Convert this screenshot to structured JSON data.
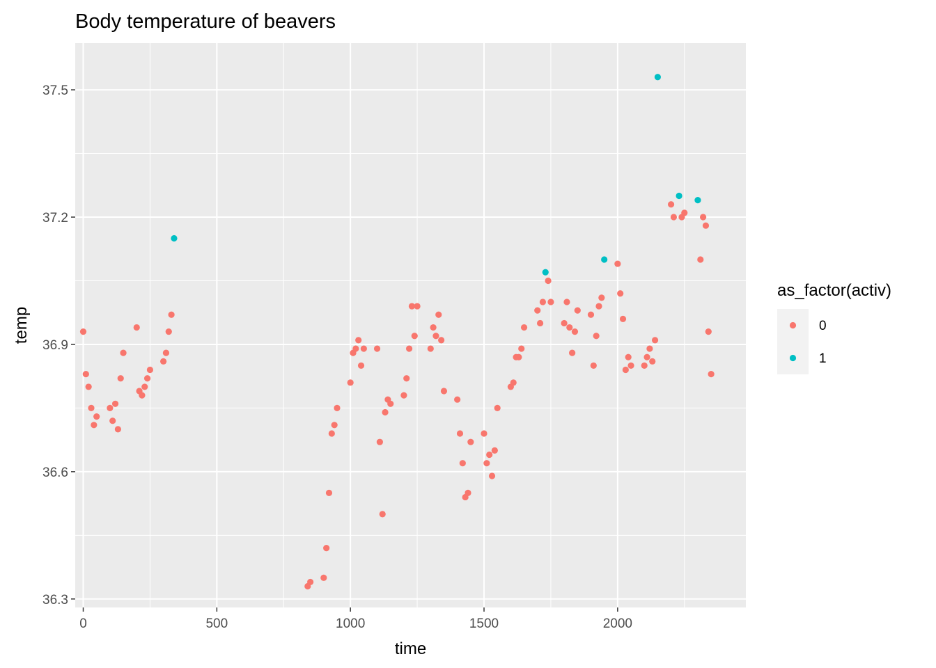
{
  "chart_data": {
    "type": "scatter",
    "title": "Body temperature of beavers",
    "xlabel": "time",
    "ylabel": "temp",
    "xlim": [
      -30,
      2480
    ],
    "ylim": [
      36.28,
      37.61
    ],
    "x_ticks": [
      0,
      500,
      1000,
      1500,
      2000
    ],
    "x_tick_labels": [
      "0",
      "500",
      "1000",
      "1500",
      "2000"
    ],
    "y_ticks": [
      36.3,
      36.6,
      36.9,
      37.2,
      37.5
    ],
    "y_tick_labels": [
      "36.3",
      "36.6",
      "36.9",
      "37.2",
      "37.5"
    ],
    "grid": true,
    "legend": {
      "title": "as_factor(activ)",
      "placement": "right"
    },
    "series": [
      {
        "name": "0",
        "color": "#F8766D",
        "points": [
          [
            0,
            36.93
          ],
          [
            10,
            36.83
          ],
          [
            20,
            36.8
          ],
          [
            30,
            36.75
          ],
          [
            40,
            36.71
          ],
          [
            50,
            36.73
          ],
          [
            100,
            36.75
          ],
          [
            110,
            36.72
          ],
          [
            120,
            36.76
          ],
          [
            130,
            36.7
          ],
          [
            140,
            36.82
          ],
          [
            150,
            36.88
          ],
          [
            200,
            36.94
          ],
          [
            210,
            36.79
          ],
          [
            220,
            36.78
          ],
          [
            230,
            36.8
          ],
          [
            240,
            36.82
          ],
          [
            250,
            36.84
          ],
          [
            300,
            36.86
          ],
          [
            310,
            36.88
          ],
          [
            320,
            36.93
          ],
          [
            330,
            36.97
          ],
          [
            840,
            36.33
          ],
          [
            850,
            36.34
          ],
          [
            900,
            36.35
          ],
          [
            910,
            36.42
          ],
          [
            920,
            36.55
          ],
          [
            930,
            36.69
          ],
          [
            940,
            36.71
          ],
          [
            950,
            36.75
          ],
          [
            1000,
            36.81
          ],
          [
            1010,
            36.88
          ],
          [
            1020,
            36.89
          ],
          [
            1030,
            36.91
          ],
          [
            1040,
            36.85
          ],
          [
            1050,
            36.89
          ],
          [
            1100,
            36.89
          ],
          [
            1110,
            36.67
          ],
          [
            1120,
            36.5
          ],
          [
            1130,
            36.74
          ],
          [
            1140,
            36.77
          ],
          [
            1150,
            36.76
          ],
          [
            1200,
            36.78
          ],
          [
            1210,
            36.82
          ],
          [
            1220,
            36.89
          ],
          [
            1230,
            36.99
          ],
          [
            1240,
            36.92
          ],
          [
            1250,
            36.99
          ],
          [
            1300,
            36.89
          ],
          [
            1310,
            36.94
          ],
          [
            1320,
            36.92
          ],
          [
            1330,
            36.97
          ],
          [
            1340,
            36.91
          ],
          [
            1350,
            36.79
          ],
          [
            1400,
            36.77
          ],
          [
            1410,
            36.69
          ],
          [
            1420,
            36.62
          ],
          [
            1430,
            36.54
          ],
          [
            1440,
            36.55
          ],
          [
            1450,
            36.67
          ],
          [
            1500,
            36.69
          ],
          [
            1510,
            36.62
          ],
          [
            1520,
            36.64
          ],
          [
            1530,
            36.59
          ],
          [
            1540,
            36.65
          ],
          [
            1550,
            36.75
          ],
          [
            1600,
            36.8
          ],
          [
            1610,
            36.81
          ],
          [
            1620,
            36.87
          ],
          [
            1630,
            36.87
          ],
          [
            1640,
            36.89
          ],
          [
            1650,
            36.94
          ],
          [
            1700,
            36.98
          ],
          [
            1710,
            36.95
          ],
          [
            1720,
            37.0
          ],
          [
            1740,
            37.05
          ],
          [
            1750,
            37.0
          ],
          [
            1800,
            36.95
          ],
          [
            1810,
            37.0
          ],
          [
            1820,
            36.94
          ],
          [
            1830,
            36.88
          ],
          [
            1840,
            36.93
          ],
          [
            1850,
            36.98
          ],
          [
            1900,
            36.97
          ],
          [
            1910,
            36.85
          ],
          [
            1920,
            36.92
          ],
          [
            1930,
            36.99
          ],
          [
            1940,
            37.01
          ],
          [
            2000,
            37.09
          ],
          [
            2010,
            37.02
          ],
          [
            2020,
            36.96
          ],
          [
            2030,
            36.84
          ],
          [
            2040,
            36.87
          ],
          [
            2050,
            36.85
          ],
          [
            2100,
            36.85
          ],
          [
            2110,
            36.87
          ],
          [
            2120,
            36.89
          ],
          [
            2130,
            36.86
          ],
          [
            2140,
            36.91
          ],
          [
            2200,
            37.23
          ],
          [
            2210,
            37.2
          ],
          [
            2240,
            37.2
          ],
          [
            2250,
            37.21
          ],
          [
            2310,
            37.1
          ],
          [
            2320,
            37.2
          ],
          [
            2330,
            37.18
          ],
          [
            2340,
            36.93
          ],
          [
            2350,
            36.83
          ]
        ]
      },
      {
        "name": "1",
        "color": "#00BFC4",
        "points": [
          [
            340,
            37.15
          ],
          [
            1730,
            37.07
          ],
          [
            1950,
            37.1
          ],
          [
            2150,
            37.53
          ],
          [
            2230,
            37.25
          ],
          [
            2300,
            37.24
          ]
        ]
      }
    ]
  }
}
